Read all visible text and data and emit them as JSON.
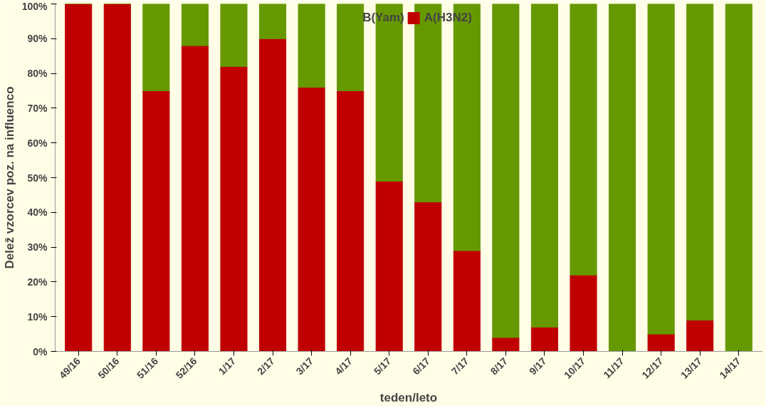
{
  "chart_data": {
    "type": "bar",
    "stacked": true,
    "xlabel": "teden/leto",
    "ylabel": "Delež vzorcev poz. na influenco",
    "categories": [
      "49/16",
      "50/16",
      "51/16",
      "52/16",
      "1/17",
      "2/17",
      "3/17",
      "4/17",
      "5/17",
      "6/17",
      "7/17",
      "8/17",
      "9/17",
      "10/17",
      "11/17",
      "12/17",
      "13/17",
      "14/17"
    ],
    "series": [
      {
        "name": "A(H3N2)",
        "color": "#c00000",
        "values": [
          100,
          100,
          75,
          88,
          82,
          90,
          76,
          75,
          49,
          43,
          29,
          4,
          7,
          22,
          0,
          5,
          9,
          0
        ]
      },
      {
        "name": "B(Yam)",
        "color": "#669900",
        "values": [
          0,
          0,
          25,
          12,
          18,
          10,
          24,
          25,
          51,
          57,
          71,
          96,
          93,
          78,
          100,
          95,
          91,
          100
        ]
      }
    ],
    "ylim": [
      0,
      100
    ],
    "yticks": [
      {
        "value": 0,
        "label": "0%"
      },
      {
        "value": 10,
        "label": "10%"
      },
      {
        "value": 20,
        "label": "20%"
      },
      {
        "value": 30,
        "label": "30%"
      },
      {
        "value": 40,
        "label": "40%"
      },
      {
        "value": 50,
        "label": "50%"
      },
      {
        "value": 60,
        "label": "60%"
      },
      {
        "value": 70,
        "label": "70%"
      },
      {
        "value": 80,
        "label": "80%"
      },
      {
        "value": 90,
        "label": "90%"
      },
      {
        "value": 100,
        "label": "100%"
      }
    ],
    "grid": false,
    "legend": "top"
  }
}
